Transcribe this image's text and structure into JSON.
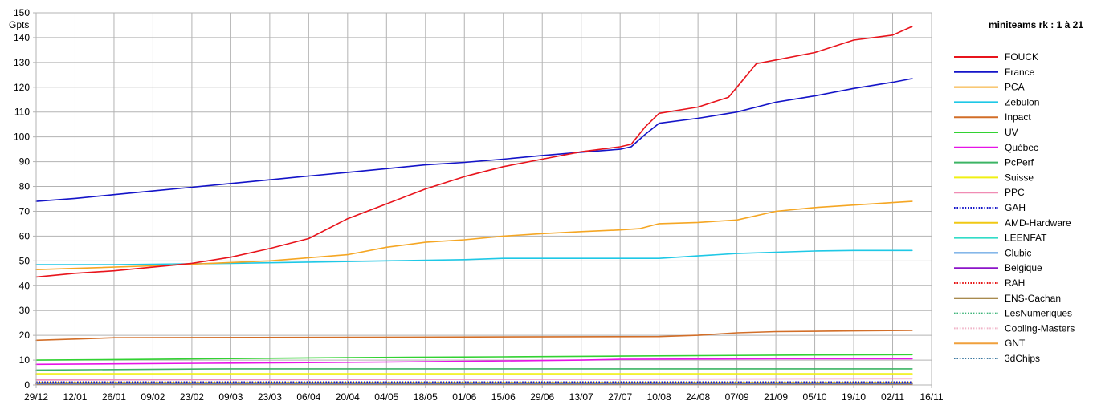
{
  "chart_data": {
    "type": "line",
    "ylabel": "Gpts",
    "legend_title": "miniteams rk : 1 à 21",
    "legend_position": "right",
    "grid": true,
    "ylim": [
      0,
      150
    ],
    "yticks": [
      0,
      10,
      20,
      30,
      40,
      50,
      60,
      70,
      80,
      90,
      100,
      110,
      120,
      130,
      140,
      150
    ],
    "xlim": [
      "29/12",
      "16/11"
    ],
    "xtick_labels": [
      "29/12",
      "12/01",
      "26/01",
      "09/02",
      "23/02",
      "09/03",
      "23/03",
      "06/04",
      "20/04",
      "04/05",
      "18/05",
      "01/06",
      "15/06",
      "29/06",
      "13/07",
      "27/07",
      "10/08",
      "24/08",
      "07/09",
      "21/09",
      "05/10",
      "19/10",
      "02/11",
      "16/11"
    ],
    "series": [
      {
        "name": "FOUCK",
        "color": "#e8141c",
        "dash": "solid",
        "width": 1.6,
        "points": [
          [
            "29/12",
            43.5
          ],
          [
            "12/01",
            45
          ],
          [
            "26/01",
            46
          ],
          [
            "09/02",
            47.5
          ],
          [
            "23/02",
            49
          ],
          [
            "09/03",
            51.5
          ],
          [
            "23/03",
            55
          ],
          [
            "06/04",
            59
          ],
          [
            "20/04",
            67
          ],
          [
            "04/05",
            73
          ],
          [
            "18/05",
            79
          ],
          [
            "01/06",
            84
          ],
          [
            "15/06",
            88
          ],
          [
            "29/06",
            91
          ],
          [
            "13/07",
            94
          ],
          [
            "27/07",
            96
          ],
          [
            "31/07",
            97
          ],
          [
            "05/08",
            104
          ],
          [
            "10/08",
            109.5
          ],
          [
            "24/08",
            112
          ],
          [
            "04/09",
            116
          ],
          [
            "07/09",
            120
          ],
          [
            "14/09",
            129.5
          ],
          [
            "21/09",
            131
          ],
          [
            "05/10",
            134
          ],
          [
            "19/10",
            139
          ],
          [
            "02/11",
            141
          ],
          [
            "09/11",
            144.5
          ]
        ]
      },
      {
        "name": "France",
        "color": "#1414c8",
        "dash": "solid",
        "width": 1.6,
        "points": [
          [
            "29/12",
            74
          ],
          [
            "12/01",
            75.2
          ],
          [
            "26/01",
            76.7
          ],
          [
            "09/02",
            78.2
          ],
          [
            "23/02",
            79.7
          ],
          [
            "09/03",
            81.2
          ],
          [
            "23/03",
            82.7
          ],
          [
            "06/04",
            84.2
          ],
          [
            "20/04",
            85.7
          ],
          [
            "04/05",
            87.2
          ],
          [
            "18/05",
            88.7
          ],
          [
            "01/06",
            89.7
          ],
          [
            "15/06",
            91
          ],
          [
            "29/06",
            92.5
          ],
          [
            "13/07",
            93.8
          ],
          [
            "27/07",
            95
          ],
          [
            "31/07",
            96
          ],
          [
            "05/08",
            101
          ],
          [
            "10/08",
            105.5
          ],
          [
            "24/08",
            107.5
          ],
          [
            "07/09",
            110
          ],
          [
            "21/09",
            114
          ],
          [
            "05/10",
            116.5
          ],
          [
            "19/10",
            119.5
          ],
          [
            "02/11",
            122
          ],
          [
            "09/11",
            123.5
          ]
        ]
      },
      {
        "name": "PCA",
        "color": "#f5a623",
        "dash": "solid",
        "width": 1.6,
        "points": [
          [
            "29/12",
            46.5
          ],
          [
            "09/02",
            48
          ],
          [
            "23/03",
            50
          ],
          [
            "20/04",
            52.5
          ],
          [
            "04/05",
            55.5
          ],
          [
            "18/05",
            57.5
          ],
          [
            "01/06",
            58.5
          ],
          [
            "15/06",
            60
          ],
          [
            "29/06",
            61
          ],
          [
            "13/07",
            61.8
          ],
          [
            "27/07",
            62.5
          ],
          [
            "03/08",
            63
          ],
          [
            "10/08",
            65
          ],
          [
            "24/08",
            65.5
          ],
          [
            "07/09",
            66.5
          ],
          [
            "21/09",
            70
          ],
          [
            "05/10",
            71.5
          ],
          [
            "19/10",
            72.5
          ],
          [
            "02/11",
            73.5
          ],
          [
            "09/11",
            74
          ]
        ]
      },
      {
        "name": "Zebulon",
        "color": "#1ec8e6",
        "dash": "solid",
        "width": 1.6,
        "points": [
          [
            "29/12",
            48.5
          ],
          [
            "26/01",
            48.5
          ],
          [
            "09/03",
            49
          ],
          [
            "06/04",
            49.5
          ],
          [
            "04/05",
            50
          ],
          [
            "01/06",
            50.5
          ],
          [
            "15/06",
            51
          ],
          [
            "29/06",
            51
          ],
          [
            "13/07",
            51
          ],
          [
            "10/08",
            51
          ],
          [
            "24/08",
            52
          ],
          [
            "07/09",
            53
          ],
          [
            "21/09",
            53.5
          ],
          [
            "05/10",
            54
          ],
          [
            "19/10",
            54.2
          ],
          [
            "09/11",
            54.2
          ]
        ]
      },
      {
        "name": "Inpact",
        "color": "#d26e28",
        "dash": "solid",
        "width": 1.6,
        "points": [
          [
            "29/12",
            18
          ],
          [
            "12/01",
            18.5
          ],
          [
            "26/01",
            19
          ],
          [
            "10/08",
            19.5
          ],
          [
            "24/08",
            20
          ],
          [
            "07/09",
            21
          ],
          [
            "21/09",
            21.5
          ],
          [
            "19/10",
            21.8
          ],
          [
            "09/11",
            22
          ]
        ]
      },
      {
        "name": "UV",
        "color": "#32d232",
        "dash": "solid",
        "width": 1.6,
        "points": [
          [
            "29/12",
            10
          ],
          [
            "09/02",
            10.3
          ],
          [
            "09/03",
            10.6
          ],
          [
            "20/04",
            11
          ],
          [
            "15/06",
            11.3
          ],
          [
            "27/07",
            11.6
          ],
          [
            "21/09",
            12
          ],
          [
            "09/11",
            12.2
          ]
        ]
      },
      {
        "name": "Québec",
        "color": "#e614e6",
        "dash": "solid",
        "width": 1.6,
        "points": [
          [
            "29/12",
            8.3
          ],
          [
            "09/03",
            8.8
          ],
          [
            "04/05",
            9.2
          ],
          [
            "01/06",
            9.5
          ],
          [
            "13/07",
            10
          ],
          [
            "27/07",
            10.3
          ],
          [
            "21/09",
            10.5
          ],
          [
            "09/11",
            10.5
          ]
        ]
      },
      {
        "name": "PcPerf",
        "color": "#3cb464",
        "dash": "solid",
        "width": 1.6,
        "points": [
          [
            "29/12",
            6
          ],
          [
            "09/03",
            6.5
          ],
          [
            "09/11",
            6.5
          ]
        ]
      },
      {
        "name": "Suisse",
        "color": "#f0f014",
        "dash": "solid",
        "width": 1.6,
        "points": [
          [
            "29/12",
            4.5
          ],
          [
            "09/11",
            4.5
          ]
        ]
      },
      {
        "name": "PPC",
        "color": "#f08cb4",
        "dash": "solid",
        "width": 1.6,
        "points": [
          [
            "29/12",
            2
          ],
          [
            "20/04",
            2.2
          ],
          [
            "09/11",
            2.5
          ]
        ]
      },
      {
        "name": "GAH",
        "color": "#1414c8",
        "dash": "dotted",
        "width": 1.6,
        "points": [
          [
            "29/12",
            1.2
          ],
          [
            "09/11",
            1.2
          ]
        ]
      },
      {
        "name": "AMD-Hardware",
        "color": "#f0c814",
        "dash": "solid",
        "width": 1.6,
        "points": [
          [
            "29/12",
            1
          ],
          [
            "09/11",
            1
          ]
        ]
      },
      {
        "name": "LEENFAT",
        "color": "#32dcc8",
        "dash": "solid",
        "width": 1.6,
        "points": [
          [
            "29/12",
            0.8
          ],
          [
            "09/11",
            0.8
          ]
        ]
      },
      {
        "name": "Clubic",
        "color": "#3c8cdc",
        "dash": "solid",
        "width": 1.6,
        "points": [
          [
            "29/12",
            0.7
          ],
          [
            "09/11",
            0.7
          ]
        ]
      },
      {
        "name": "Belgique",
        "color": "#8c14c8",
        "dash": "solid",
        "width": 1.6,
        "points": [
          [
            "29/12",
            0.6
          ],
          [
            "09/11",
            0.6
          ]
        ]
      },
      {
        "name": "RAH",
        "color": "#e61414",
        "dash": "dotted",
        "width": 1.6,
        "points": [
          [
            "29/12",
            0.5
          ],
          [
            "09/11",
            0.5
          ]
        ]
      },
      {
        "name": "ENS-Cachan",
        "color": "#8c6414",
        "dash": "solid",
        "width": 1.6,
        "points": [
          [
            "29/12",
            0.4
          ],
          [
            "09/11",
            0.4
          ]
        ]
      },
      {
        "name": "LesNumeriques",
        "color": "#3cb478",
        "dash": "dotted",
        "width": 1.6,
        "points": [
          [
            "29/12",
            0.35
          ],
          [
            "09/11",
            0.35
          ]
        ]
      },
      {
        "name": "Cooling-Masters",
        "color": "#f0b4c8",
        "dash": "dotted",
        "width": 1.6,
        "points": [
          [
            "29/12",
            0.3
          ],
          [
            "09/11",
            0.3
          ]
        ]
      },
      {
        "name": "GNT",
        "color": "#f0a03c",
        "dash": "solid",
        "width": 1.6,
        "points": [
          [
            "29/12",
            0.25
          ],
          [
            "09/11",
            0.25
          ]
        ]
      },
      {
        "name": "3dChips",
        "color": "#3c78a0",
        "dash": "dotted",
        "width": 1.6,
        "points": [
          [
            "29/12",
            0.2
          ],
          [
            "09/11",
            0.2
          ]
        ]
      }
    ]
  }
}
